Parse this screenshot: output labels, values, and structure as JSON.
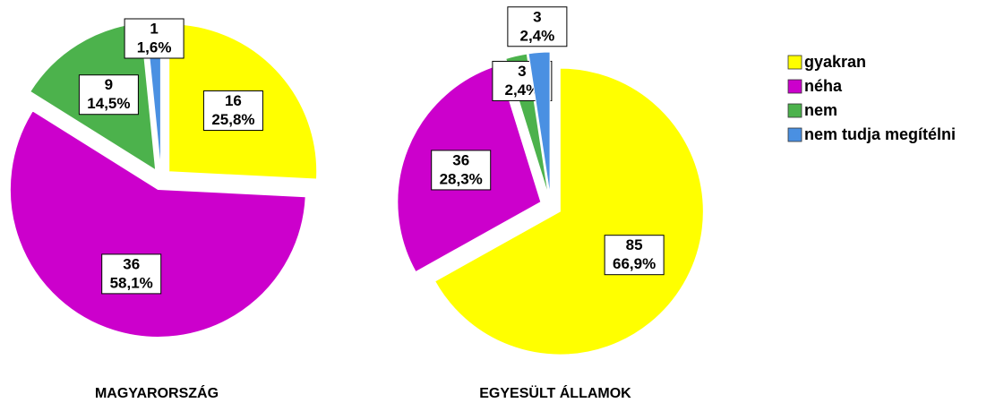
{
  "legend": {
    "position": "right",
    "categories": [
      "gyakran",
      "néha",
      "nem",
      "nem tudja megítélni"
    ],
    "colors": [
      "#ffff00",
      "#cc00cc",
      "#4cb24c",
      "#4a90e2"
    ]
  },
  "chart_data": [
    {
      "type": "pie",
      "title": "MAGYARORSZÁG",
      "values": [
        25.8,
        58.1,
        14.5,
        1.6
      ],
      "value_labels": [
        "25,8%",
        "58,1%",
        "14,5%",
        "1,6%"
      ],
      "counts": [
        16,
        36,
        9,
        1
      ]
    },
    {
      "type": "pie",
      "title": "EGYESÜLT ÁLLAMOK",
      "values": [
        66.9,
        28.3,
        2.4,
        2.4
      ],
      "value_labels": [
        "66,9%",
        "28,3%",
        "2,4%",
        "2,4%"
      ],
      "counts": [
        85,
        36,
        3,
        3
      ]
    }
  ]
}
